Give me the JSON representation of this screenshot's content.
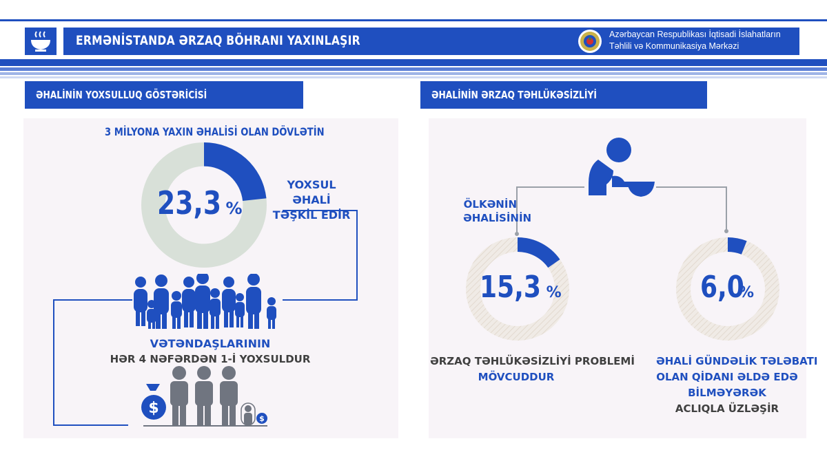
{
  "header": {
    "title": "ERMƏNİSTANDA ƏRZAQ BÖHRANI YAXINLAŞIR",
    "org_line1": "Azərbaycan Respublikası İqtisadi İslahatların",
    "org_line2": "Təhlili və Kommunikasiya Mərkəzi",
    "icon": "soup-bowl-icon"
  },
  "left": {
    "section_title": "ƏHALİNİN YOXSULLUQ  GÖSTƏRİCİSİ",
    "subtitle": "3 MİLYONA YAXIN ƏHALİSİ OLAN DÖVLƏTİN",
    "percent_value": "23,3",
    "percent_sign": "%",
    "percent_fraction": 0.233,
    "callout_line1": "YOXSUL ƏHALİ",
    "callout_line2": "TƏŞKİL EDİR",
    "people_caption_line1": "VƏTƏNDAŞLARININ",
    "people_caption_line2": "HƏR 4 NƏFƏRDƏN 1-İ YOXSULDUR",
    "money_symbol": "$"
  },
  "right": {
    "section_title": "ƏHALİNİN ƏRZAQ TƏHLÜKƏSİZLİYİ",
    "country_label_line1": "ÖLKƏNİN",
    "country_label_line2": "ƏHALİSİNİN",
    "left_value": "15,3",
    "left_sign": "%",
    "left_fraction": 0.153,
    "left_caption_line1": "ƏRZAQ TƏHLÜKƏSİZLİYİ PROBLEMİ",
    "left_caption_line2": "MÖVCUDDUR",
    "right_value": "6,0",
    "right_sign": "%",
    "right_fraction": 0.06,
    "right_caption_line1": "ƏHALİ GÜNDƏLİK TƏLƏBATI",
    "right_caption_line2": "OLAN QİDANI ƏLDƏ EDƏ",
    "right_caption_line3": "BİLMƏYƏRƏK",
    "right_caption_line4": "ACLIQLA ÜZLƏŞİR"
  },
  "colors": {
    "primary": "#1f4fbf",
    "donut_rest": "#d8e0d8",
    "ring_rest": "#f0ebe6",
    "panel_bg": "#f8f4f8",
    "people_gray": "#707580"
  }
}
